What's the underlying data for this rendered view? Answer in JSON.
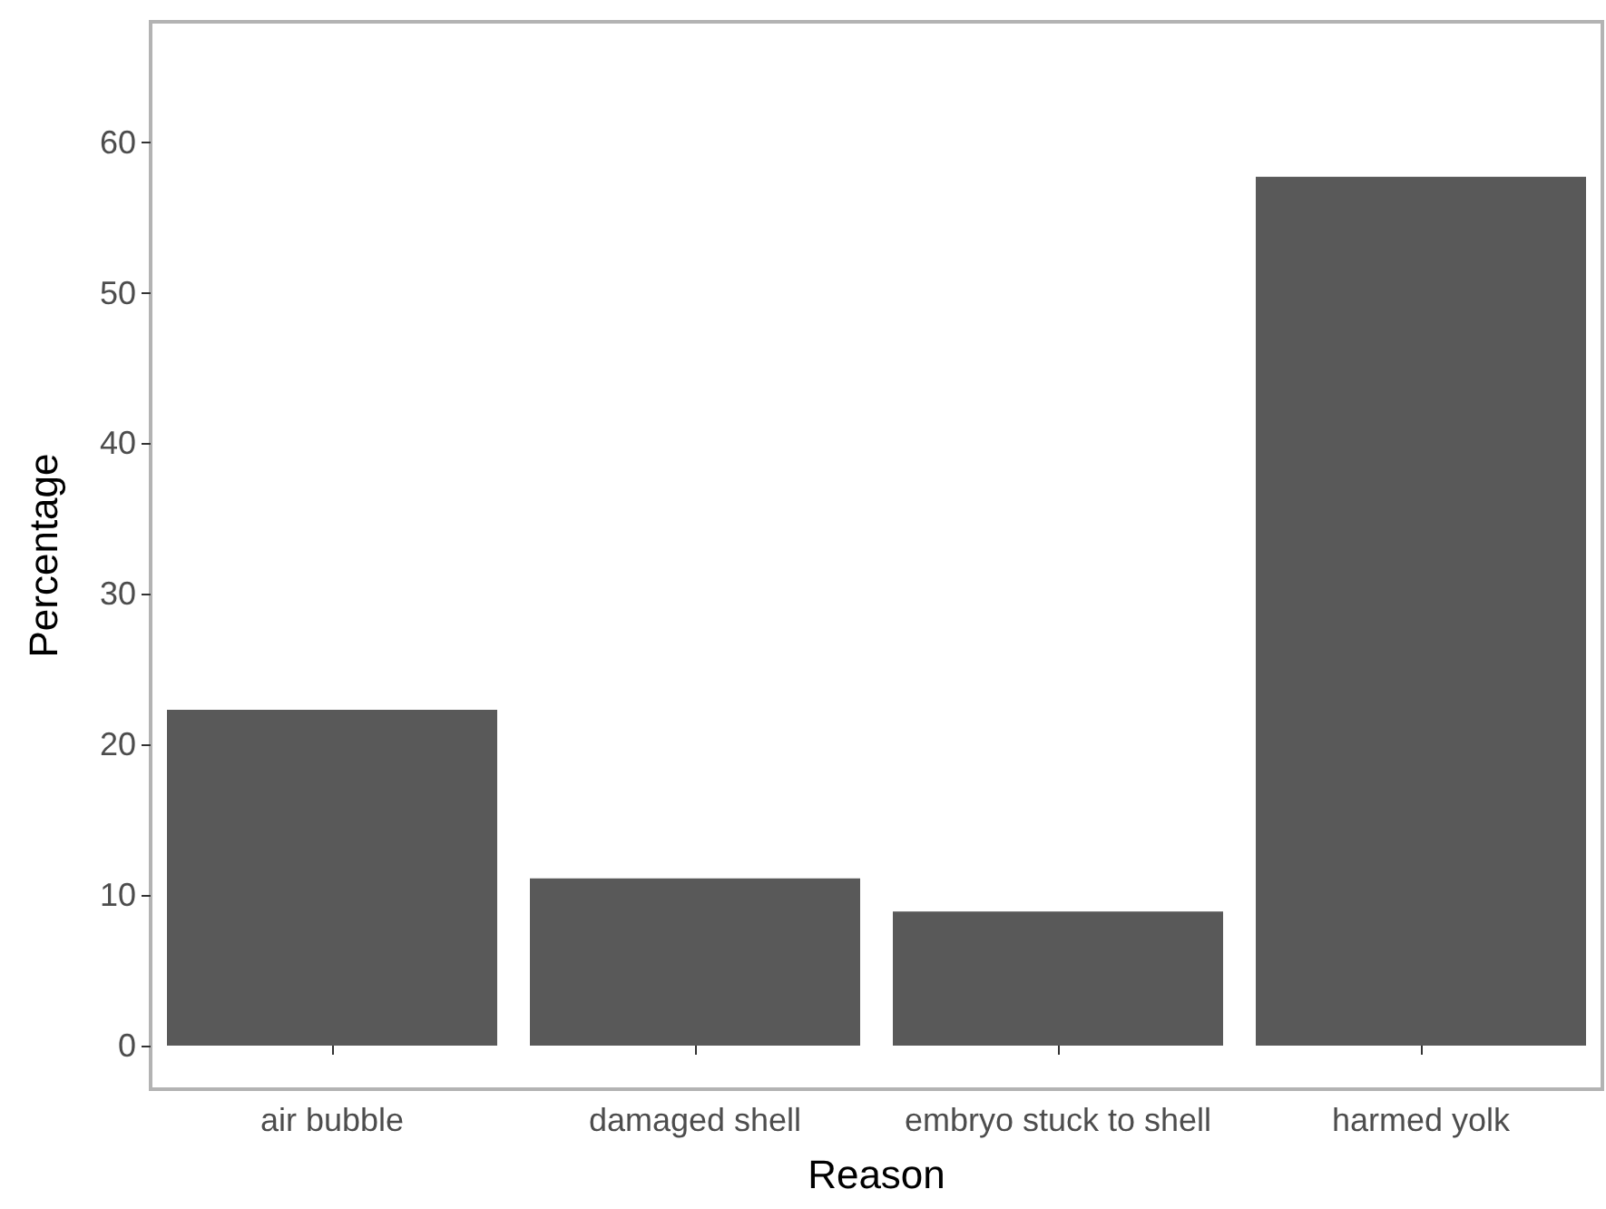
{
  "chart_data": {
    "type": "bar",
    "xlabel": "Reason",
    "ylabel": "Percentage",
    "categories": [
      "air bubble",
      "damaged shell",
      "embryo stuck to shell",
      "harmed yolk"
    ],
    "values": [
      22.3,
      11.1,
      8.9,
      57.7
    ],
    "color": "#595959",
    "ylim": [
      -2.9,
      68
    ],
    "yticks": [
      0,
      10,
      20,
      30,
      40,
      50,
      60
    ],
    "grid": false
  }
}
